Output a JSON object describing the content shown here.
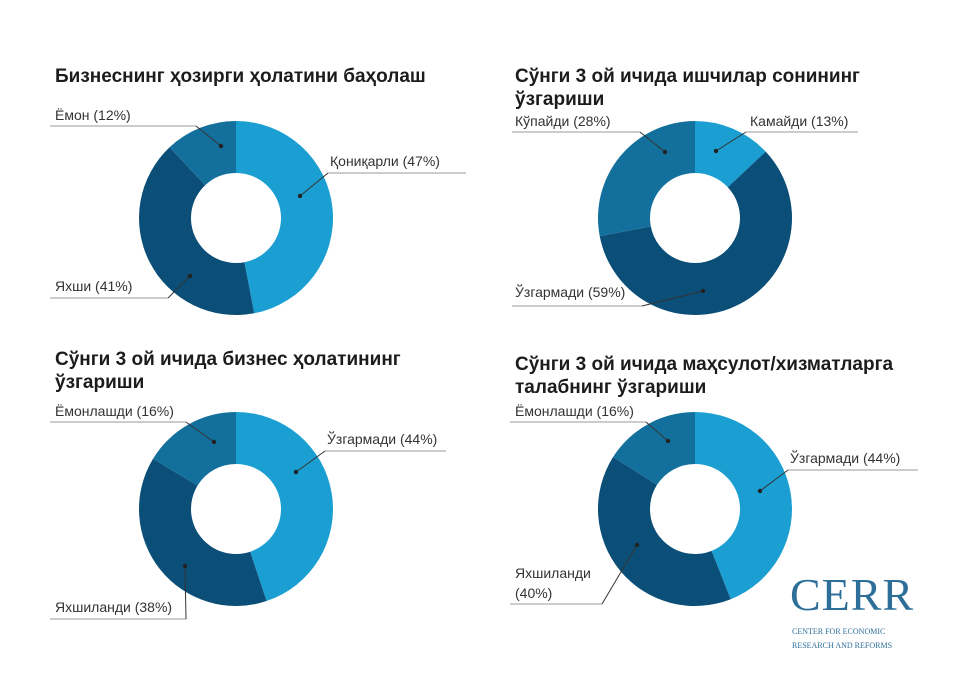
{
  "colors": {
    "light": "#1b9fd2",
    "medium": "#13709c",
    "dark": "#0b4e78"
  },
  "chart_data": [
    {
      "type": "pie",
      "title_lines": [
        "Бизнеснинг ҳозирги ҳолатини баҳолаш"
      ],
      "slices": [
        {
          "label": "Қониқарли (47%)",
          "value": 47,
          "color": "light"
        },
        {
          "label": "Яхши (41%)",
          "value": 41,
          "color": "dark"
        },
        {
          "label": "Ёмон (12%)",
          "value": 12,
          "color": "medium"
        }
      ]
    },
    {
      "type": "pie",
      "title_lines": [
        "Сўнги 3 ой ичида ишчилар сонининг",
        "ўзгариши"
      ],
      "slices": [
        {
          "label": "Камайди (13%)",
          "value": 13,
          "color": "light"
        },
        {
          "label": "Ўзгармади (59%)",
          "value": 59,
          "color": "dark"
        },
        {
          "label": "Кўпайди (28%)",
          "value": 28,
          "color": "medium"
        }
      ]
    },
    {
      "type": "pie",
      "title_lines": [
        "Сўнги 3 ой ичида бизнес ҳолатининг",
        "ўзгариши"
      ],
      "slices": [
        {
          "label": "Ўзгармади (44%)",
          "value": 44,
          "color": "light"
        },
        {
          "label": "Яхшиланди (38%)",
          "value": 38,
          "color": "dark"
        },
        {
          "label": "Ёмонлашди (16%)",
          "value": 16,
          "color": "medium"
        }
      ]
    },
    {
      "type": "pie",
      "title_lines": [
        "Сўнги 3 ой ичида маҳсулот/хизматларга",
        "талабнинг ўзгариши"
      ],
      "slices": [
        {
          "label": "Ўзгармади (44%)",
          "value": 44,
          "color": "light"
        },
        {
          "label": "Яхшиланди (40%)",
          "value": 40,
          "color": "dark"
        },
        {
          "label": "Ёмонлашди (16%)",
          "value": 16,
          "color": "medium"
        }
      ]
    }
  ],
  "logo": {
    "name": "CERR",
    "line1": "CENTER FOR ECONOMIC",
    "line2": "RESEARCH AND REFORMS"
  }
}
